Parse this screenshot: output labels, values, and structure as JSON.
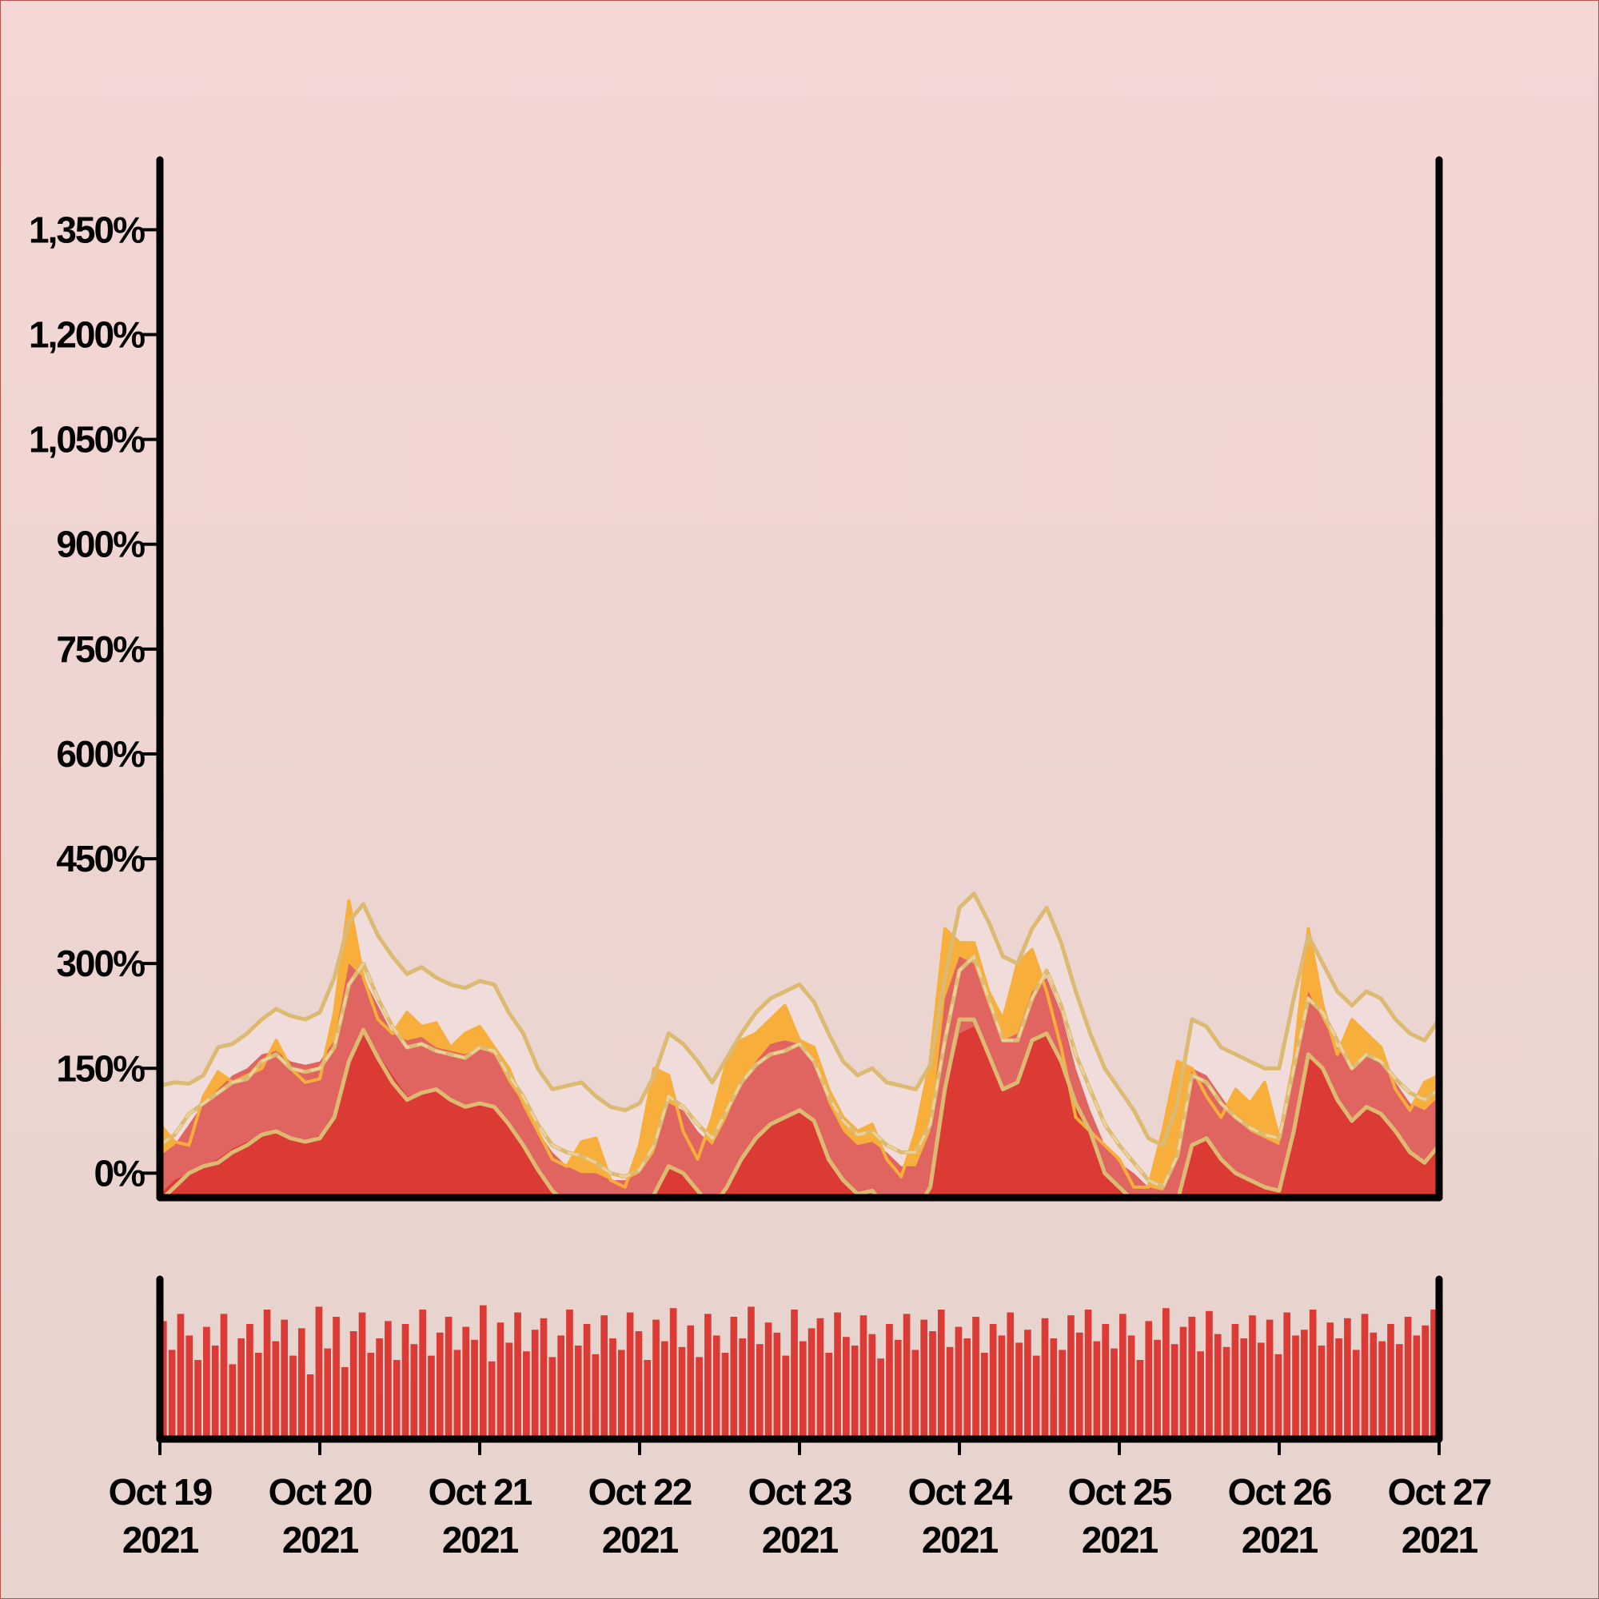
{
  "chart_data": {
    "type": "area",
    "title": "",
    "xlabel": "",
    "ylabel": "",
    "x_range": [
      "2021-10-19",
      "2021-10-27"
    ],
    "x_ticks": [
      {
        "line1": "Oct 19",
        "line2": "2021"
      },
      {
        "line1": "Oct 20",
        "line2": "2021"
      },
      {
        "line1": "Oct 21",
        "line2": "2021"
      },
      {
        "line1": "Oct 22",
        "line2": "2021"
      },
      {
        "line1": "Oct 23",
        "line2": "2021"
      },
      {
        "line1": "Oct 24",
        "line2": "2021"
      },
      {
        "line1": "Oct 25",
        "line2": "2021"
      },
      {
        "line1": "Oct 26",
        "line2": "2021"
      },
      {
        "line1": "Oct 27",
        "line2": "2021"
      }
    ],
    "y_ticks": [
      "0%",
      "150%",
      "300%",
      "450%",
      "600%",
      "750%",
      "900%",
      "1,050%",
      "1,200%",
      "1,350%"
    ],
    "y_tick_values": [
      0,
      150,
      300,
      450,
      600,
      750,
      900,
      1050,
      1200,
      1350
    ],
    "ylim": [
      -35,
      1450
    ],
    "grid": false,
    "colors": {
      "band_light": "#f0dcda",
      "band_mid": "#e06561",
      "band_dark": "#dc3a35",
      "price_line": "#f7ae3a",
      "envelope": "#dcba72",
      "volume": "#dc3a35",
      "axis": "#000000"
    },
    "day_offsets": [
      0,
      1,
      2,
      3,
      4,
      5,
      6,
      7,
      8
    ],
    "series": {
      "upper": [
        125,
        130,
        128,
        140,
        180,
        185,
        200,
        220,
        235,
        225,
        220,
        230,
        280,
        360,
        385,
        340,
        310,
        285,
        295,
        280,
        270,
        265,
        275,
        270,
        230,
        200,
        150,
        120,
        125,
        130,
        110,
        95,
        90,
        100,
        140,
        200,
        185,
        160,
        130,
        165,
        200,
        230,
        250,
        260,
        270,
        245,
        200,
        160,
        140,
        150,
        130,
        125,
        120,
        155,
        280,
        380,
        400,
        360,
        310,
        300,
        350,
        380,
        330,
        260,
        200,
        150,
        120,
        90,
        50,
        40,
        100,
        220,
        210,
        180,
        170,
        160,
        150,
        150,
        250,
        340,
        300,
        260,
        240,
        260,
        250,
        220,
        200,
        190,
        220
      ],
      "middle": [
        40,
        55,
        85,
        100,
        115,
        130,
        135,
        160,
        170,
        150,
        145,
        150,
        180,
        270,
        300,
        250,
        210,
        180,
        185,
        175,
        170,
        165,
        180,
        175,
        140,
        110,
        70,
        40,
        30,
        25,
        15,
        0,
        -5,
        5,
        40,
        110,
        95,
        70,
        50,
        90,
        130,
        155,
        170,
        175,
        185,
        160,
        110,
        75,
        55,
        60,
        40,
        30,
        30,
        70,
        190,
        290,
        310,
        250,
        190,
        190,
        250,
        290,
        240,
        170,
        120,
        70,
        40,
        15,
        -10,
        -20,
        25,
        140,
        130,
        100,
        80,
        65,
        55,
        50,
        150,
        250,
        230,
        190,
        150,
        170,
        160,
        135,
        115,
        105,
        120
      ],
      "lower": [
        -40,
        -20,
        0,
        10,
        15,
        30,
        40,
        55,
        60,
        50,
        45,
        50,
        80,
        160,
        205,
        165,
        130,
        105,
        115,
        120,
        105,
        95,
        100,
        95,
        70,
        40,
        5,
        -25,
        -45,
        -55,
        -60,
        -70,
        -70,
        -60,
        -30,
        10,
        0,
        -25,
        -50,
        -20,
        20,
        50,
        70,
        80,
        90,
        75,
        20,
        -10,
        -30,
        -25,
        -50,
        -60,
        -55,
        -20,
        120,
        220,
        220,
        170,
        120,
        130,
        190,
        200,
        160,
        100,
        60,
        0,
        -20,
        -40,
        -60,
        -70,
        -40,
        40,
        50,
        20,
        0,
        -10,
        -20,
        -25,
        60,
        170,
        150,
        105,
        75,
        95,
        85,
        60,
        30,
        15,
        40
      ],
      "area_mid": [
        25,
        40,
        70,
        100,
        120,
        140,
        150,
        170,
        175,
        160,
        155,
        160,
        190,
        300,
        280,
        240,
        200,
        190,
        195,
        180,
        175,
        170,
        180,
        170,
        130,
        100,
        60,
        30,
        10,
        0,
        0,
        -10,
        -10,
        0,
        30,
        100,
        90,
        60,
        40,
        80,
        130,
        160,
        185,
        190,
        185,
        160,
        100,
        60,
        40,
        45,
        30,
        10,
        10,
        60,
        250,
        310,
        300,
        240,
        190,
        200,
        260,
        280,
        230,
        150,
        90,
        40,
        15,
        0,
        -20,
        -25,
        30,
        150,
        140,
        110,
        80,
        60,
        50,
        40,
        150,
        260,
        220,
        180,
        150,
        170,
        160,
        130,
        100,
        90,
        110
      ],
      "area_dark": [
        -30,
        -10,
        0,
        10,
        20,
        35,
        45,
        55,
        60,
        50,
        45,
        55,
        80,
        160,
        200,
        170,
        140,
        110,
        115,
        120,
        105,
        95,
        100,
        95,
        70,
        40,
        5,
        -25,
        -45,
        -55,
        -60,
        -70,
        -70,
        -60,
        -30,
        10,
        0,
        -25,
        -50,
        -20,
        20,
        50,
        70,
        80,
        90,
        75,
        20,
        -10,
        -30,
        -25,
        -50,
        -60,
        -55,
        -20,
        120,
        200,
        210,
        170,
        120,
        130,
        190,
        200,
        160,
        100,
        60,
        0,
        -20,
        -40,
        -60,
        -70,
        -40,
        40,
        50,
        20,
        0,
        -10,
        -20,
        -25,
        60,
        170,
        150,
        105,
        75,
        95,
        85,
        60,
        30,
        15,
        40
      ],
      "price": [
        70,
        45,
        40,
        110,
        145,
        130,
        140,
        150,
        190,
        150,
        130,
        135,
        230,
        390,
        280,
        220,
        200,
        230,
        210,
        215,
        180,
        200,
        210,
        180,
        150,
        100,
        60,
        20,
        10,
        45,
        50,
        -10,
        -20,
        40,
        150,
        140,
        60,
        20,
        80,
        160,
        190,
        200,
        220,
        240,
        190,
        180,
        120,
        80,
        60,
        70,
        20,
        -5,
        60,
        160,
        350,
        330,
        330,
        260,
        220,
        300,
        320,
        260,
        180,
        80,
        60,
        40,
        20,
        -20,
        -20,
        60,
        160,
        150,
        110,
        80,
        120,
        100,
        130,
        50,
        160,
        350,
        240,
        170,
        220,
        200,
        180,
        120,
        90,
        130,
        140
      ]
    },
    "volume": [
      0.82,
      0.62,
      0.87,
      0.72,
      0.55,
      0.78,
      0.65,
      0.87,
      0.52,
      0.7,
      0.8,
      0.6,
      0.9,
      0.68,
      0.83,
      0.58,
      0.77,
      0.45,
      0.92,
      0.63,
      0.85,
      0.5,
      0.75,
      0.88,
      0.6,
      0.7,
      0.82,
      0.55,
      0.8,
      0.66,
      0.9,
      0.58,
      0.74,
      0.85,
      0.62,
      0.78,
      0.69,
      0.93,
      0.54,
      0.81,
      0.67,
      0.88,
      0.61,
      0.76,
      0.84,
      0.57,
      0.72,
      0.9,
      0.65,
      0.8,
      0.59,
      0.86,
      0.7,
      0.62,
      0.88,
      0.75,
      0.55,
      0.83,
      0.68,
      0.91,
      0.64,
      0.79,
      0.57,
      0.87,
      0.72,
      0.6,
      0.85,
      0.7,
      0.92,
      0.66,
      0.81,
      0.74,
      0.58,
      0.9,
      0.68,
      0.77,
      0.84,
      0.6,
      0.88,
      0.71,
      0.65,
      0.86,
      0.73,
      0.56,
      0.8,
      0.69,
      0.87,
      0.62,
      0.83,
      0.75,
      0.9,
      0.64,
      0.78,
      0.7,
      0.85,
      0.6,
      0.8,
      0.72,
      0.88,
      0.67,
      0.76,
      0.58,
      0.84,
      0.7,
      0.62,
      0.86,
      0.74,
      0.9,
      0.68,
      0.8,
      0.63,
      0.87,
      0.72,
      0.55,
      0.82,
      0.69,
      0.91,
      0.66,
      0.78,
      0.85,
      0.61,
      0.89,
      0.73,
      0.64,
      0.8,
      0.7,
      0.86,
      0.67,
      0.83,
      0.59,
      0.88,
      0.72,
      0.76,
      0.9,
      0.65,
      0.81,
      0.7,
      0.84,
      0.62,
      0.87,
      0.74,
      0.68,
      0.8,
      0.66,
      0.85,
      0.72,
      0.79,
      0.9
    ]
  }
}
